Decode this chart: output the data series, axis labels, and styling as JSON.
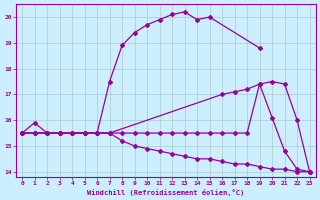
{
  "xlabel": "Windchill (Refroidissement éolien,°C)",
  "xlim": [
    -0.5,
    23.5
  ],
  "ylim": [
    13.8,
    20.5
  ],
  "yticks": [
    14,
    15,
    16,
    17,
    18,
    19,
    20
  ],
  "xticks": [
    0,
    1,
    2,
    3,
    4,
    5,
    6,
    7,
    8,
    9,
    10,
    11,
    12,
    13,
    14,
    15,
    16,
    17,
    18,
    19,
    20,
    21,
    22,
    23
  ],
  "bg_color": "#cceeff",
  "grid_color": "#aacccc",
  "line_color": "#990099",
  "curve1_x": [
    0,
    1,
    2,
    3,
    4,
    5,
    6,
    7,
    8,
    9,
    10,
    11,
    12,
    13,
    14,
    15,
    19
  ],
  "curve1_y": [
    15.5,
    15.9,
    15.5,
    15.5,
    15.5,
    15.5,
    15.5,
    17.5,
    18.9,
    19.4,
    19.7,
    19.9,
    20.1,
    20.2,
    19.9,
    20.0,
    18.8
  ],
  "curve2_x": [
    0,
    1,
    2,
    3,
    4,
    5,
    6,
    7,
    16,
    17,
    18,
    19,
    20,
    21,
    22,
    23
  ],
  "curve2_y": [
    15.5,
    15.5,
    15.5,
    15.5,
    15.5,
    15.5,
    15.5,
    15.5,
    17.0,
    17.1,
    17.2,
    17.4,
    17.5,
    17.4,
    16.0,
    14.0
  ],
  "curve3_x": [
    0,
    1,
    2,
    3,
    4,
    5,
    6,
    7,
    8,
    9,
    10,
    11,
    12,
    13,
    14,
    15,
    16,
    17,
    18,
    19,
    20,
    21,
    22,
    23
  ],
  "curve3_y": [
    15.5,
    15.5,
    15.5,
    15.5,
    15.5,
    15.5,
    15.5,
    15.5,
    15.5,
    15.5,
    15.5,
    15.5,
    15.5,
    15.5,
    15.5,
    15.5,
    15.5,
    15.5,
    15.5,
    17.4,
    16.1,
    14.8,
    14.1,
    14.0
  ],
  "curve4_x": [
    0,
    1,
    2,
    3,
    4,
    5,
    6,
    7,
    8,
    9,
    10,
    11,
    12,
    13,
    14,
    15,
    16,
    17,
    18,
    19,
    20,
    21,
    22,
    23
  ],
  "curve4_y": [
    15.5,
    15.5,
    15.5,
    15.5,
    15.5,
    15.5,
    15.5,
    15.5,
    15.2,
    15.0,
    14.9,
    14.8,
    14.7,
    14.6,
    14.5,
    14.5,
    14.4,
    14.3,
    14.3,
    14.2,
    14.1,
    14.1,
    14.0,
    14.0
  ]
}
